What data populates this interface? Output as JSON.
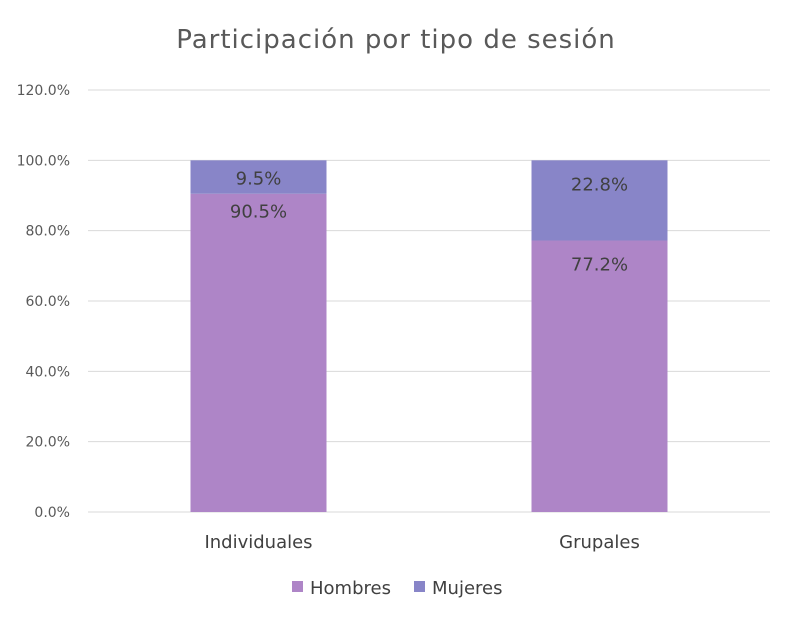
{
  "chart_data": {
    "type": "bar",
    "stacked": true,
    "title": "Participación por tipo de sesión",
    "xlabel": "",
    "ylabel": "",
    "categories": [
      "Individuales",
      "Grupales"
    ],
    "series": [
      {
        "name": "Hombres",
        "values": [
          90.5,
          77.2
        ],
        "labels": [
          "90.5%",
          "77.2%"
        ],
        "color": "#ae85c7"
      },
      {
        "name": "Mujeres",
        "values": [
          9.5,
          22.8
        ],
        "labels": [
          "9.5%",
          "22.8%"
        ],
        "color": "#8885c8"
      }
    ],
    "ylim": [
      0,
      120
    ],
    "yticks": [
      0,
      20,
      40,
      60,
      80,
      100,
      120
    ],
    "ytick_labels": [
      "0.0%",
      "20.0%",
      "40.0%",
      "60.0%",
      "80.0%",
      "100.0%",
      "120.0%"
    ],
    "grid": true,
    "legend": "bottom"
  }
}
